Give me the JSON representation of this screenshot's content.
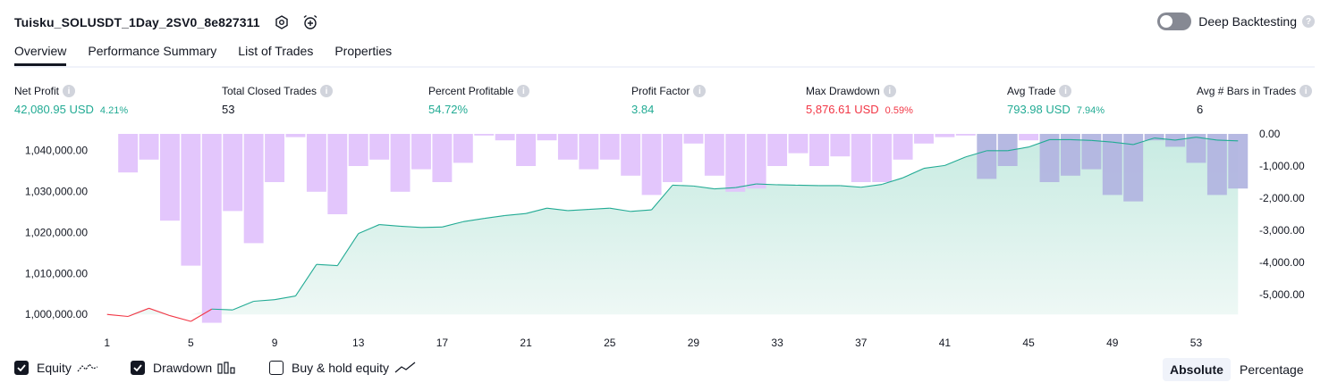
{
  "header": {
    "title": "Tuisku_SOLUSDT_1Day_2SV0_8e827311",
    "deep_backtesting_label": "Deep Backtesting"
  },
  "tabs": [
    {
      "label": "Overview",
      "active": true
    },
    {
      "label": "Performance Summary",
      "active": false
    },
    {
      "label": "List of Trades",
      "active": false
    },
    {
      "label": "Properties",
      "active": false
    }
  ],
  "metrics": {
    "net_profit": {
      "label": "Net Profit",
      "value": "42,080.95 USD",
      "sub": "4.21%"
    },
    "total_closed_trades": {
      "label": "Total Closed Trades",
      "value": "53"
    },
    "percent_profitable": {
      "label": "Percent Profitable",
      "value": "54.72%"
    },
    "profit_factor": {
      "label": "Profit Factor",
      "value": "3.84"
    },
    "max_drawdown": {
      "label": "Max Drawdown",
      "value": "5,876.61 USD",
      "sub": "0.59%"
    },
    "avg_trade": {
      "label": "Avg Trade",
      "value": "793.98 USD",
      "sub": "7.94%"
    },
    "avg_bars": {
      "label": "Avg # Bars in Trades",
      "value": "6"
    }
  },
  "colors": {
    "profit_green": "#22ab94",
    "loss_red": "#f23645",
    "drawdown_bar": "#e1c3fc",
    "drawdown_overlap": "#b2b5e0",
    "equity_fill_top": "#c8ebe2",
    "equity_fill_bottom": "#eef8f5"
  },
  "chart_data": {
    "type": "line",
    "x_ticks": [
      "1",
      "5",
      "9",
      "13",
      "17",
      "21",
      "25",
      "29",
      "33",
      "37",
      "41",
      "45",
      "49",
      "53"
    ],
    "left_axis_ticks": [
      "1,040,000.00",
      "1,030,000.00",
      "1,020,000.00",
      "1,010,000.00",
      "1,000,000.00"
    ],
    "right_axis_ticks": [
      "0.00",
      "-1,000.00",
      "-2,000.00",
      "-3,000.00",
      "-4,000.00",
      "-5,000.00"
    ],
    "left_ylim": [
      997000,
      1044000
    ],
    "right_ylim": [
      -6000,
      0
    ],
    "x": [
      1,
      2,
      3,
      4,
      5,
      6,
      7,
      8,
      9,
      10,
      11,
      12,
      13,
      14,
      15,
      16,
      17,
      18,
      19,
      20,
      21,
      22,
      23,
      24,
      25,
      26,
      27,
      28,
      29,
      30,
      31,
      32,
      33,
      34,
      35,
      36,
      37,
      38,
      39,
      40,
      41,
      42,
      43,
      44,
      45,
      46,
      47,
      48,
      49,
      50,
      51,
      52,
      53,
      54,
      55
    ],
    "series": [
      {
        "name": "Equity",
        "values": [
          1000000,
          999500,
          1001500,
          999700,
          998300,
          1001300,
          1001100,
          1003200,
          1003600,
          1004500,
          1012200,
          1011900,
          1019700,
          1021900,
          1021500,
          1021200,
          1021300,
          1022600,
          1023400,
          1024100,
          1024600,
          1025900,
          1025300,
          1025600,
          1025900,
          1025100,
          1025500,
          1031500,
          1031300,
          1030600,
          1030900,
          1031800,
          1031600,
          1031500,
          1031400,
          1031400,
          1031000,
          1031700,
          1033300,
          1035600,
          1036300,
          1038400,
          1039900,
          1039900,
          1040800,
          1042600,
          1042600,
          1042400,
          1042000,
          1041400,
          1043000,
          1042500,
          1043200,
          1042500,
          1042300
        ]
      },
      {
        "name": "Drawdown",
        "values": [
          0,
          -1200,
          -800,
          -2700,
          -4100,
          -5877,
          -2400,
          -3400,
          -1500,
          -100,
          -1800,
          -2500,
          -1000,
          -800,
          -1800,
          -1100,
          -1500,
          -900,
          -50,
          -200,
          -1000,
          -200,
          -800,
          -1100,
          -800,
          -1300,
          -1900,
          -1500,
          -300,
          -1300,
          -1800,
          -1700,
          -1000,
          -600,
          -1000,
          -700,
          -1500,
          -1500,
          -800,
          -300,
          -100,
          -50,
          -1400,
          -1000,
          -200,
          -1500,
          -1300,
          -1100,
          -1900,
          -2100,
          -200,
          -400,
          -900,
          -1900,
          -1700
        ]
      }
    ]
  },
  "legend": {
    "equity": {
      "label": "Equity",
      "checked": true
    },
    "drawdown": {
      "label": "Drawdown",
      "checked": true
    },
    "buy_hold": {
      "label": "Buy & hold equity",
      "checked": false
    }
  },
  "mode": {
    "absolute": "Absolute",
    "percentage": "Percentage",
    "selected": "Absolute"
  }
}
